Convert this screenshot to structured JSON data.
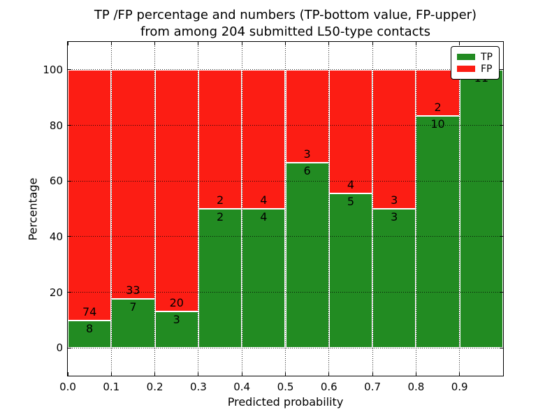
{
  "figure": {
    "title_line1": "TP /FP percentage and numbers (TP-bottom value, FP-upper)",
    "title_line2": "from among 204 submitted L50-type contacts",
    "xlabel": "Predicted probability",
    "ylabel": "Percentage",
    "background_color": "#ffffff",
    "text_color": "#000000"
  },
  "legend": {
    "position": "upper-right",
    "items": [
      {
        "label": "TP",
        "color": "#228b22"
      },
      {
        "label": "FP",
        "color": "#fc1d14"
      }
    ]
  },
  "chart_data": {
    "type": "bar",
    "stacked": true,
    "normalized": "percent",
    "title": "TP /FP percentage and numbers (TP-bottom value, FP-upper) from among 204 submitted L50-type contacts",
    "xlabel": "Predicted probability",
    "ylabel": "Percentage",
    "xlim": [
      0.0,
      1.0
    ],
    "ylim": [
      -10,
      110
    ],
    "x_ticks": [
      0.0,
      0.1,
      0.2,
      0.3,
      0.4,
      0.5,
      0.6,
      0.7,
      0.8,
      0.9
    ],
    "y_ticks": [
      0,
      20,
      40,
      60,
      80,
      100
    ],
    "grid": "dotted",
    "bar_edge_color": "#ffffff",
    "total_contacts": 204,
    "bin_width": 0.1,
    "bins": [
      {
        "range": [
          0.0,
          0.1
        ],
        "tp": 8,
        "fp": 74,
        "tp_percent": 9.8
      },
      {
        "range": [
          0.1,
          0.2
        ],
        "tp": 7,
        "fp": 33,
        "tp_percent": 17.5
      },
      {
        "range": [
          0.2,
          0.3
        ],
        "tp": 3,
        "fp": 20,
        "tp_percent": 13.0
      },
      {
        "range": [
          0.3,
          0.4
        ],
        "tp": 2,
        "fp": 2,
        "tp_percent": 50.0
      },
      {
        "range": [
          0.4,
          0.5
        ],
        "tp": 4,
        "fp": 4,
        "tp_percent": 50.0
      },
      {
        "range": [
          0.5,
          0.6
        ],
        "tp": 6,
        "fp": 3,
        "tp_percent": 66.7
      },
      {
        "range": [
          0.6,
          0.7
        ],
        "tp": 5,
        "fp": 4,
        "tp_percent": 55.6
      },
      {
        "range": [
          0.7,
          0.8
        ],
        "tp": 3,
        "fp": 3,
        "tp_percent": 50.0
      },
      {
        "range": [
          0.8,
          0.9
        ],
        "tp": 10,
        "fp": 2,
        "tp_percent": 83.3
      },
      {
        "range": [
          0.9,
          1.0
        ],
        "tp": 11,
        "fp": 0,
        "tp_percent": 100.0
      }
    ],
    "series": [
      {
        "name": "TP",
        "color": "#228b22",
        "counts": [
          8,
          7,
          3,
          2,
          4,
          6,
          5,
          3,
          10,
          11
        ]
      },
      {
        "name": "FP",
        "color": "#fc1d14",
        "counts": [
          74,
          33,
          20,
          2,
          4,
          3,
          4,
          3,
          2,
          0
        ]
      }
    ]
  }
}
